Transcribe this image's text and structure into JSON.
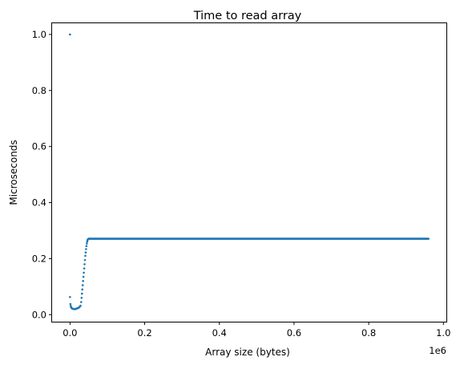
{
  "chart_data": {
    "type": "scatter",
    "title": "Time to read array",
    "xlabel": "Array size (bytes)",
    "ylabel": "Microseconds",
    "x_offset_label": "1e6",
    "xlim": [
      -0.048,
      1.008
    ],
    "ylim": [
      -0.025,
      1.04
    ],
    "x_ticks": [
      0.0,
      0.2,
      0.4,
      0.6,
      0.8,
      1.0
    ],
    "x_tick_labels": [
      "0.0",
      "0.2",
      "0.4",
      "0.6",
      "0.8",
      "1.0"
    ],
    "y_ticks": [
      0.0,
      0.2,
      0.4,
      0.6,
      0.8,
      1.0
    ],
    "y_tick_labels": [
      "0.0",
      "0.2",
      "0.4",
      "0.6",
      "0.8",
      "1.0"
    ],
    "grid": false,
    "marker_color": "#1f77b4",
    "series": [
      {
        "outliers": [
          {
            "x": 0.0,
            "y": 1.0
          },
          {
            "x": 0.0,
            "y": 0.063
          }
        ],
        "points": [
          [
            0.001,
            0.038
          ],
          [
            0.002,
            0.031
          ],
          [
            0.003,
            0.027
          ],
          [
            0.004,
            0.024
          ],
          [
            0.006,
            0.022
          ],
          [
            0.008,
            0.021
          ],
          [
            0.01,
            0.02
          ],
          [
            0.012,
            0.02
          ],
          [
            0.014,
            0.02
          ],
          [
            0.016,
            0.021
          ],
          [
            0.018,
            0.022
          ],
          [
            0.02,
            0.023
          ],
          [
            0.022,
            0.024
          ],
          [
            0.024,
            0.026
          ],
          [
            0.026,
            0.028
          ],
          [
            0.028,
            0.032
          ],
          [
            0.03,
            0.045
          ],
          [
            0.031,
            0.06
          ],
          [
            0.032,
            0.075
          ],
          [
            0.033,
            0.09
          ],
          [
            0.034,
            0.105
          ],
          [
            0.035,
            0.12
          ],
          [
            0.036,
            0.135
          ],
          [
            0.037,
            0.15
          ],
          [
            0.038,
            0.165
          ],
          [
            0.039,
            0.18
          ],
          [
            0.04,
            0.195
          ],
          [
            0.041,
            0.21
          ],
          [
            0.042,
            0.222
          ],
          [
            0.043,
            0.234
          ],
          [
            0.044,
            0.245
          ],
          [
            0.045,
            0.254
          ],
          [
            0.046,
            0.261
          ],
          [
            0.047,
            0.266
          ],
          [
            0.048,
            0.269
          ],
          [
            0.05,
            0.27
          ]
        ],
        "plateau": {
          "x_start": 0.05,
          "x_end": 0.96,
          "step": 0.002,
          "y": 0.271
        }
      }
    ]
  }
}
